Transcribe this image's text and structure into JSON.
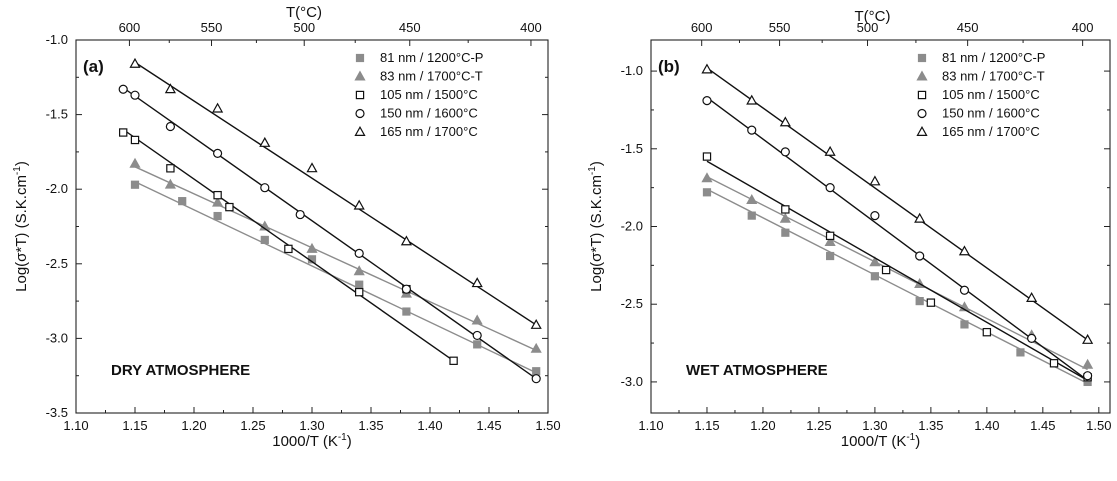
{
  "chart_data": [
    {
      "type": "scatter",
      "panel_label": "(a)",
      "annotation": "DRY ATMOSPHERE",
      "xlabel": "1000/T (K",
      "xlabel_sup": "-1",
      "xlabel_end": ")",
      "ylabel": "Log(σ*T) (S.K.cm",
      "ylabel_sup": "-1",
      "ylabel_end": ")",
      "top_xlabel": "T(°C)",
      "xlim": [
        1.1,
        1.5
      ],
      "ylim": [
        -3.5,
        -1.0
      ],
      "xticks": [
        1.1,
        1.15,
        1.2,
        1.25,
        1.3,
        1.35,
        1.4,
        1.45,
        1.5
      ],
      "xtick_labels": [
        "1.10",
        "1.15",
        "1.20",
        "1.25",
        "1.30",
        "1.35",
        "1.40",
        "1.45",
        "1.50"
      ],
      "yticks": [
        -1.0,
        -1.5,
        -2.0,
        -2.5,
        -3.0,
        -3.5
      ],
      "ytick_labels": [
        "-1.0",
        "-1.5",
        "-2.0",
        "-2.5",
        "-3.0",
        "-3.5"
      ],
      "top_ticks_celsius": [
        600,
        550,
        500,
        450,
        400
      ],
      "top_tick_labels": [
        "600",
        "550",
        "500",
        "450",
        "400"
      ],
      "legend_position": "top-right",
      "series": [
        {
          "name": "81 nm / 1200°C-P",
          "marker": "filled-square",
          "color": "#8c8c8c",
          "x": [
            1.15,
            1.19,
            1.22,
            1.26,
            1.3,
            1.34,
            1.38,
            1.44,
            1.49
          ],
          "y": [
            -1.97,
            -2.08,
            -2.18,
            -2.34,
            -2.47,
            -2.64,
            -2.82,
            -3.04,
            -3.22
          ],
          "fit": [
            [
              1.15,
              -1.95
            ],
            [
              1.49,
              -3.23
            ]
          ]
        },
        {
          "name": "83 nm / 1700°C-T",
          "marker": "filled-triangle",
          "color": "#8c8c8c",
          "x": [
            1.15,
            1.18,
            1.22,
            1.26,
            1.3,
            1.34,
            1.38,
            1.44,
            1.49
          ],
          "y": [
            -1.83,
            -1.97,
            -2.09,
            -2.25,
            -2.4,
            -2.55,
            -2.7,
            -2.88,
            -3.07
          ],
          "fit": [
            [
              1.15,
              -1.85
            ],
            [
              1.49,
              -3.08
            ]
          ]
        },
        {
          "name": "105 nm / 1500°C",
          "marker": "open-square",
          "color": "#111111",
          "x": [
            1.14,
            1.15,
            1.18,
            1.22,
            1.23,
            1.28,
            1.34,
            1.38,
            1.42
          ],
          "y": [
            -1.62,
            -1.67,
            -1.86,
            -2.04,
            -2.12,
            -2.4,
            -2.69,
            -2.67,
            -3.15
          ],
          "fit": [
            [
              1.14,
              -1.6
            ],
            [
              1.42,
              -3.15
            ]
          ]
        },
        {
          "name": "150 nm / 1600°C",
          "marker": "open-circle",
          "color": "#111111",
          "x": [
            1.14,
            1.15,
            1.18,
            1.22,
            1.26,
            1.29,
            1.34,
            1.38,
            1.44,
            1.49
          ],
          "y": [
            -1.33,
            -1.37,
            -1.58,
            -1.76,
            -1.99,
            -2.17,
            -2.43,
            -2.67,
            -2.98,
            -3.27
          ],
          "fit": [
            [
              1.14,
              -1.32
            ],
            [
              1.49,
              -3.27
            ]
          ]
        },
        {
          "name": "165 nm / 1700°C",
          "marker": "open-triangle",
          "color": "#111111",
          "x": [
            1.15,
            1.18,
            1.22,
            1.26,
            1.3,
            1.34,
            1.38,
            1.44,
            1.49
          ],
          "y": [
            -1.16,
            -1.33,
            -1.46,
            -1.69,
            -1.86,
            -2.11,
            -2.35,
            -2.63,
            -2.91
          ],
          "fit": [
            [
              1.15,
              -1.15
            ],
            [
              1.49,
              -2.91
            ]
          ]
        }
      ]
    },
    {
      "type": "scatter",
      "panel_label": "(b)",
      "annotation": "WET ATMOSPHERE",
      "xlabel": "1000/T (K",
      "xlabel_sup": "-1",
      "xlabel_end": ")",
      "ylabel": "Log(σ*T) (S.K.cm",
      "ylabel_sup": "-1",
      "ylabel_end": ")",
      "top_xlabel": "T(°C)",
      "xlim": [
        1.1,
        1.51
      ],
      "ylim": [
        -3.2,
        -0.8
      ],
      "xticks": [
        1.1,
        1.15,
        1.2,
        1.25,
        1.3,
        1.35,
        1.4,
        1.45,
        1.5
      ],
      "xtick_labels": [
        "1.10",
        "1.15",
        "1.20",
        "1.25",
        "1.30",
        "1.35",
        "1.40",
        "1.45",
        "1.50"
      ],
      "yticks": [
        -1.0,
        -1.5,
        -2.0,
        -2.5,
        -3.0
      ],
      "ytick_labels": [
        "-1.0",
        "-1.5",
        "-2.0",
        "-2.5",
        "-3.0"
      ],
      "top_ticks_celsius": [
        600,
        550,
        500,
        450,
        400
      ],
      "top_tick_labels": [
        "600",
        "550",
        "500",
        "450",
        "400"
      ],
      "legend_position": "top-right",
      "series": [
        {
          "name": "81 nm / 1200°C-P",
          "marker": "filled-square",
          "color": "#8c8c8c",
          "x": [
            1.15,
            1.19,
            1.22,
            1.26,
            1.3,
            1.34,
            1.38,
            1.43,
            1.49
          ],
          "y": [
            -1.78,
            -1.93,
            -2.04,
            -2.19,
            -2.32,
            -2.48,
            -2.63,
            -2.81,
            -3.0
          ],
          "fit": [
            [
              1.15,
              -1.76
            ],
            [
              1.49,
              -3.01
            ]
          ]
        },
        {
          "name": "83 nm / 1700°C-T",
          "marker": "filled-triangle",
          "color": "#8c8c8c",
          "x": [
            1.15,
            1.19,
            1.22,
            1.26,
            1.3,
            1.34,
            1.38,
            1.44,
            1.49
          ],
          "y": [
            -1.69,
            -1.83,
            -1.95,
            -2.1,
            -2.23,
            -2.37,
            -2.52,
            -2.7,
            -2.89
          ],
          "fit": [
            [
              1.15,
              -1.68
            ],
            [
              1.49,
              -2.92
            ]
          ]
        },
        {
          "name": "105 nm / 1500°C",
          "marker": "open-square",
          "color": "#111111",
          "x": [
            1.15,
            1.22,
            1.26,
            1.31,
            1.35,
            1.4,
            1.46,
            1.49
          ],
          "y": [
            -1.55,
            -1.89,
            -2.06,
            -2.28,
            -2.49,
            -2.68,
            -2.88,
            -2.97
          ],
          "fit": [
            [
              1.15,
              -1.58
            ],
            [
              1.49,
              -2.99
            ]
          ]
        },
        {
          "name": "150 nm / 1600°C",
          "marker": "open-circle",
          "color": "#111111",
          "x": [
            1.15,
            1.19,
            1.22,
            1.26,
            1.3,
            1.34,
            1.38,
            1.44,
            1.49
          ],
          "y": [
            -1.19,
            -1.38,
            -1.52,
            -1.75,
            -1.93,
            -2.19,
            -2.41,
            -2.72,
            -2.96
          ],
          "fit": [
            [
              1.15,
              -1.17
            ],
            [
              1.49,
              -2.99
            ]
          ]
        },
        {
          "name": "165 nm / 1700°C",
          "marker": "open-triangle",
          "color": "#111111",
          "x": [
            1.15,
            1.19,
            1.22,
            1.26,
            1.3,
            1.34,
            1.38,
            1.44,
            1.49
          ],
          "y": [
            -0.99,
            -1.19,
            -1.33,
            -1.52,
            -1.71,
            -1.95,
            -2.16,
            -2.46,
            -2.73
          ],
          "fit": [
            [
              1.15,
              -0.98
            ],
            [
              1.49,
              -2.73
            ]
          ]
        }
      ]
    }
  ]
}
